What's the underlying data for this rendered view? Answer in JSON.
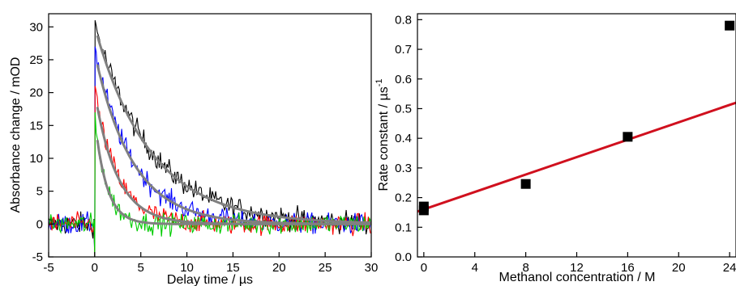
{
  "chart_data": [
    {
      "type": "line",
      "xlabel": "Delay time / µs",
      "ylabel": "Absorbance change / mOD",
      "xlim": [
        -5,
        30
      ],
      "ylim": [
        -5,
        32
      ],
      "xticks": [
        "-5",
        "0",
        "5",
        "10",
        "15",
        "20",
        "25",
        "30"
      ],
      "yticks": [
        "-5",
        "0",
        "5",
        "10",
        "15",
        "20",
        "25",
        "30"
      ],
      "grid": false,
      "series": [
        {
          "color": "#000000",
          "amplitude": 30.5,
          "decay_rate": 0.165,
          "noise": 1.6,
          "kind": "data"
        },
        {
          "color": "#0000ff",
          "amplitude": 26.5,
          "decay_rate": 0.245,
          "noise": 1.5,
          "kind": "data"
        },
        {
          "color": "#ff0000",
          "amplitude": 20.5,
          "decay_rate": 0.41,
          "noise": 1.5,
          "kind": "data"
        },
        {
          "color": "#00cc00",
          "amplitude": 16.5,
          "decay_rate": 0.78,
          "noise": 1.5,
          "kind": "data"
        },
        {
          "color": "#808080",
          "amplitude": 30.0,
          "decay_rate": 0.165,
          "kind": "fit"
        },
        {
          "color": "#808080",
          "amplitude": 26.0,
          "decay_rate": 0.245,
          "kind": "fit"
        },
        {
          "color": "#808080",
          "amplitude": 20.0,
          "decay_rate": 0.41,
          "kind": "fit"
        },
        {
          "color": "#808080",
          "amplitude": 16.0,
          "decay_rate": 0.78,
          "kind": "fit"
        }
      ]
    },
    {
      "type": "scatter",
      "xlabel": "Methanol concentration / M",
      "ylabel": "Rate constant / µs",
      "ylabel_superscript": "-1",
      "xlim": [
        -0.5,
        24.5
      ],
      "ylim": [
        0,
        0.82
      ],
      "xticks": [
        "0",
        "4",
        "8",
        "12",
        "16",
        "20",
        "24"
      ],
      "yticks": [
        "0.0",
        "0.1",
        "0.2",
        "0.3",
        "0.4",
        "0.5",
        "0.6",
        "0.7",
        "0.8"
      ],
      "grid": false,
      "points": {
        "x": [
          0,
          0,
          8,
          16,
          24
        ],
        "y": [
          0.157,
          0.17,
          0.246,
          0.405,
          0.78
        ],
        "color": "#000000",
        "marker": "square"
      },
      "fit_line": {
        "color": "#d0101e",
        "x": [
          -0.5,
          24.5
        ],
        "y": [
          0.153,
          0.52
        ]
      }
    }
  ]
}
